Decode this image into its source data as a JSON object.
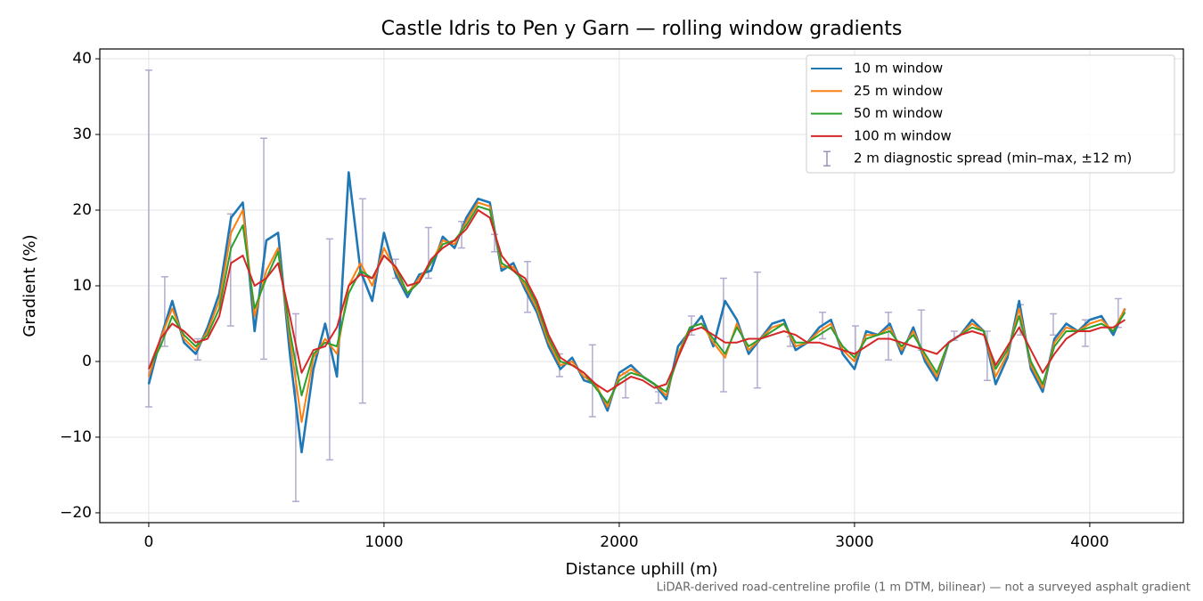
{
  "chart_data": {
    "type": "line",
    "title": "Castle Idris to Pen y Garn — rolling window gradients",
    "x_label": "Distance uphill (m)",
    "y_label": "Gradient (%)",
    "caption": "LiDAR-derived road-centreline profile (1 m DTM, bilinear) — not a surveyed asphalt gradient",
    "xlim": [
      -208,
      4398
    ],
    "ylim": [
      -21.3,
      41.3
    ],
    "xticks": [
      0,
      1000,
      2000,
      3000,
      4000
    ],
    "yticks": [
      {
        "value": -20,
        "label": "−20"
      },
      {
        "value": -10,
        "label": "−10"
      },
      0,
      10,
      20,
      30,
      40
    ],
    "grid": true,
    "legend": "upper right",
    "x": [
      0,
      50,
      100,
      150,
      200,
      250,
      300,
      350,
      400,
      450,
      500,
      550,
      600,
      650,
      700,
      750,
      800,
      850,
      900,
      950,
      1000,
      1050,
      1100,
      1150,
      1200,
      1250,
      1300,
      1350,
      1400,
      1450,
      1500,
      1550,
      1600,
      1650,
      1700,
      1750,
      1800,
      1850,
      1900,
      1950,
      2000,
      2050,
      2100,
      2150,
      2200,
      2250,
      2300,
      2350,
      2400,
      2450,
      2500,
      2550,
      2600,
      2650,
      2700,
      2750,
      2800,
      2850,
      2900,
      2950,
      3000,
      3050,
      3100,
      3150,
      3200,
      3250,
      3300,
      3350,
      3400,
      3450,
      3500,
      3550,
      3600,
      3650,
      3700,
      3750,
      3800,
      3850,
      3900,
      3950,
      4000,
      4050,
      4100,
      4150
    ],
    "series": [
      {
        "name": "10 m window",
        "color": "#1f77b4",
        "values": [
          -3,
          3,
          8,
          2.5,
          1,
          4.5,
          9,
          19,
          21,
          4,
          16,
          17,
          1,
          -12,
          -1,
          5,
          -2,
          25,
          12,
          8,
          17,
          11.5,
          8.5,
          11.5,
          12,
          16.5,
          15,
          19,
          21.5,
          21,
          12,
          13,
          9.5,
          6.5,
          2,
          -1,
          0.5,
          -2.5,
          -3,
          -6.5,
          -1.5,
          -0.5,
          -2,
          -3,
          -5,
          2,
          4,
          6,
          2,
          8,
          5.5,
          1,
          3,
          5,
          5.5,
          1.5,
          2.5,
          4.5,
          5.5,
          1,
          -1,
          4,
          3.5,
          5,
          1,
          4.5,
          0,
          -2.5,
          2.5,
          3.5,
          5.5,
          4,
          -3,
          0.5,
          8,
          -1,
          -4,
          3,
          5,
          4,
          5.5,
          6,
          3.5,
          7
        ]
      },
      {
        "name": "25 m window",
        "color": "#ff7f0e",
        "values": [
          -2,
          3,
          7,
          3,
          1.5,
          4,
          8,
          17,
          20,
          6,
          12,
          15,
          3,
          -8,
          0.5,
          3,
          1,
          10,
          13,
          10,
          15,
          12,
          9,
          11,
          13,
          16,
          15.5,
          18.5,
          21,
          20.5,
          12.5,
          12.5,
          10,
          7,
          2.5,
          -0.5,
          0,
          -2,
          -3,
          -6,
          -2,
          -1,
          -2,
          -3,
          -4.5,
          1,
          4.5,
          5,
          2.5,
          0.5,
          5,
          1.5,
          3,
          4.5,
          5,
          2,
          2.5,
          4,
          5,
          1.5,
          0,
          3.5,
          3.5,
          4.5,
          1.5,
          4,
          0.5,
          -2,
          2.5,
          3.5,
          5,
          4,
          -2,
          1,
          7,
          -0.5,
          -3.5,
          2.5,
          4.5,
          4,
          5,
          5.5,
          4,
          7
        ]
      },
      {
        "name": "50 m window",
        "color": "#2ca02c",
        "values": [
          -1,
          2,
          6,
          3.5,
          2,
          3.5,
          7,
          15,
          18,
          7,
          11,
          14.5,
          4,
          -4.5,
          1,
          2.5,
          2,
          9,
          12,
          11,
          14,
          12.5,
          9,
          10.5,
          13,
          15.5,
          16,
          18,
          20.5,
          20,
          13,
          12,
          10.5,
          7.5,
          3,
          0,
          -0.5,
          -1.5,
          -3.5,
          -5.5,
          -2.5,
          -1.5,
          -2,
          -3,
          -4,
          0.5,
          4.5,
          5,
          3,
          1,
          4.5,
          2,
          3,
          4,
          5,
          2.5,
          2.5,
          3.5,
          4.5,
          2,
          0.5,
          3,
          3.5,
          4,
          2,
          3.5,
          1,
          -1.5,
          2.5,
          3.5,
          4.5,
          4,
          -1,
          1.5,
          6,
          0,
          -3,
          2,
          4,
          4,
          4.5,
          5,
          4,
          6.5
        ]
      },
      {
        "name": "100 m window",
        "color": "#d62728",
        "values": [
          -1,
          3,
          5,
          4,
          2.5,
          3,
          6,
          13,
          14,
          10,
          11,
          13,
          6,
          -1.5,
          1.5,
          2,
          4.5,
          10,
          11.5,
          11,
          14,
          12.5,
          10,
          10.5,
          13.5,
          15,
          16,
          17.5,
          20,
          19,
          14,
          12,
          11,
          8,
          3.5,
          0.5,
          -0.5,
          -1.5,
          -3,
          -4,
          -3,
          -2,
          -2.5,
          -3.5,
          -3,
          0.5,
          4,
          4.5,
          3.5,
          2.5,
          2.5,
          3,
          3,
          3.5,
          4,
          3.5,
          2.5,
          2.5,
          2,
          1.5,
          1,
          2,
          3,
          3,
          2.5,
          2,
          1.5,
          1,
          2.5,
          3.5,
          4,
          3.5,
          -0.5,
          2,
          4.5,
          1.5,
          -1.5,
          1,
          3,
          4,
          4,
          4.5,
          4.5,
          5.5
        ]
      }
    ],
    "error_bars": {
      "name": "2 m diagnostic spread (min–max, ±12 m)",
      "color": "#9a8fbf",
      "x": [
        0,
        68,
        208,
        348,
        489,
        625,
        769,
        909,
        1049,
        1189,
        1330,
        1470,
        1610,
        1746,
        1886,
        2027,
        2167,
        2307,
        2443,
        2587,
        2727,
        2864,
        3004,
        3144,
        3284,
        3424,
        3564,
        3705,
        3845,
        3981,
        4121
      ],
      "low": [
        -6,
        2,
        0.2,
        4.7,
        0.3,
        -18.5,
        -13,
        -5.5,
        11,
        11,
        15,
        14.5,
        6.5,
        -2,
        -7.3,
        -4.8,
        -5.5,
        3.5,
        -4,
        -3.5,
        2,
        3,
        0.3,
        0.2,
        1.5,
        2.8,
        -2.5,
        3.5,
        3.5,
        2,
        4.5
      ],
      "high": [
        38.5,
        11.2,
        3,
        19.5,
        29.5,
        6.3,
        16.2,
        21.5,
        13.5,
        17.7,
        18.5,
        16.8,
        13.2,
        1,
        2.2,
        -1.5,
        -4,
        6,
        11,
        11.8,
        3.3,
        6.5,
        4.7,
        6.5,
        6.8,
        4,
        4,
        7.5,
        6.3,
        5.5,
        8.3
      ]
    }
  }
}
